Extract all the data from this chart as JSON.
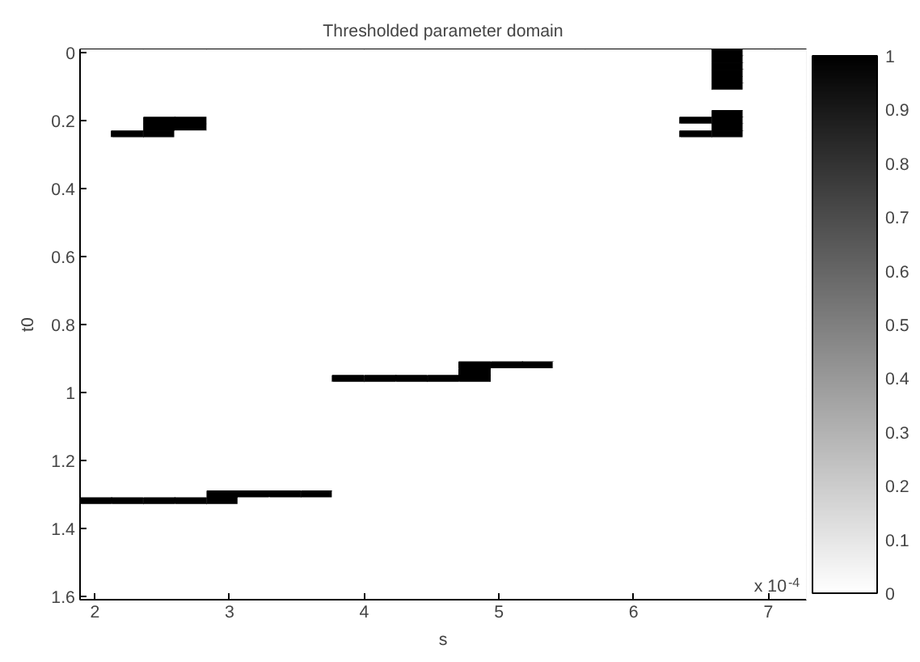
{
  "chart_data": {
    "type": "heatmap",
    "title": "Thresholded parameter domain",
    "xlabel": "s",
    "ylabel": "t0",
    "annotations": [
      "x 10$^{-4}$"
    ],
    "x": [
      2.01,
      2.24,
      2.48,
      2.71,
      2.95,
      3.18,
      3.41,
      3.65,
      3.88,
      4.12,
      4.35,
      4.59,
      4.82,
      5.06,
      5.29,
      5.52,
      5.76,
      5.99,
      6.23,
      6.46,
      6.7,
      6.93,
      7.17
    ],
    "y": [
      0,
      0.02,
      0.04,
      0.06,
      0.08,
      0.1,
      0.12,
      0.14,
      0.16,
      0.18,
      0.2,
      0.22,
      0.24,
      0.26,
      0.28,
      0.3,
      0.32,
      0.34,
      0.36,
      0.38,
      0.4,
      0.42,
      0.44,
      0.46,
      0.48,
      0.5,
      0.52,
      0.54,
      0.56,
      0.58,
      0.6,
      0.62,
      0.64,
      0.66,
      0.68,
      0.7,
      0.72,
      0.74,
      0.76,
      0.78,
      0.8,
      0.82,
      0.84,
      0.86,
      0.88,
      0.9,
      0.92,
      0.94,
      0.96,
      0.98,
      1,
      1.02,
      1.04,
      1.06,
      1.08,
      1.1,
      1.12,
      1.14,
      1.16,
      1.18,
      1.2,
      1.22,
      1.24,
      1.26,
      1.28,
      1.3,
      1.32,
      1.34,
      1.36,
      1.38,
      1.4,
      1.42,
      1.44,
      1.46,
      1.48,
      1.5,
      1.52,
      1.54,
      1.56,
      1.58,
      1.6
    ],
    "xlim": [
      1.89,
      7.28
    ],
    "ylim": [
      1.61,
      -0.01
    ],
    "xticks": [
      2,
      3,
      4,
      5,
      6,
      7
    ],
    "yticks": [
      0,
      0.2,
      0.4,
      0.6,
      0.8,
      1,
      1.2,
      1.4,
      1.6
    ],
    "clim": [
      0,
      1
    ],
    "cticks": [
      0,
      0.1,
      0.2,
      0.3,
      0.4,
      0.5,
      0.6,
      0.7,
      0.8,
      0.9,
      1
    ],
    "grid": false,
    "cells": [
      [
        0,
        0,
        0,
        0,
        0,
        0,
        0,
        0,
        0,
        0,
        0,
        0,
        0,
        0,
        0,
        0,
        0,
        0,
        0,
        0,
        1,
        0,
        0
      ],
      [
        0,
        0,
        0,
        0,
        0,
        0,
        0,
        0,
        0,
        0,
        0,
        0,
        0,
        0,
        0,
        0,
        0,
        0,
        0,
        0,
        1,
        0,
        0
      ],
      [
        0,
        0,
        0,
        0,
        0,
        0,
        0,
        0,
        0,
        0,
        0,
        0,
        0,
        0,
        0,
        0,
        0,
        0,
        0,
        0,
        1,
        0,
        0
      ],
      [
        0,
        0,
        0,
        0,
        0,
        0,
        0,
        0,
        0,
        0,
        0,
        0,
        0,
        0,
        0,
        0,
        0,
        0,
        0,
        0,
        1,
        0,
        0
      ],
      [
        0,
        0,
        0,
        0,
        0,
        0,
        0,
        0,
        0,
        0,
        0,
        0,
        0,
        0,
        0,
        0,
        0,
        0,
        0,
        0,
        1,
        0,
        0
      ],
      [
        0,
        0,
        0,
        0,
        0,
        0,
        0,
        0,
        0,
        0,
        0,
        0,
        0,
        0,
        0,
        0,
        0,
        0,
        0,
        0,
        1,
        0,
        0
      ],
      [
        0,
        0,
        0,
        0,
        0,
        0,
        0,
        0,
        0,
        0,
        0,
        0,
        0,
        0,
        0,
        0,
        0,
        0,
        0,
        0,
        0,
        0,
        0
      ],
      [
        0,
        0,
        0,
        0,
        0,
        0,
        0,
        0,
        0,
        0,
        0,
        0,
        0,
        0,
        0,
        0,
        0,
        0,
        0,
        0,
        0,
        0,
        0
      ],
      [
        0,
        0,
        0,
        0,
        0,
        0,
        0,
        0,
        0,
        0,
        0,
        0,
        0,
        0,
        0,
        0,
        0,
        0,
        0,
        0,
        0,
        0,
        0
      ],
      [
        0,
        0,
        0,
        0,
        0,
        0,
        0,
        0,
        0,
        0,
        0,
        0,
        0,
        0,
        0,
        0,
        0,
        0,
        0,
        0,
        1,
        0,
        0
      ],
      [
        0,
        0,
        1,
        1,
        0,
        0,
        0,
        0,
        0,
        0,
        0,
        0,
        0,
        0,
        0,
        0,
        0,
        0,
        0,
        1,
        1,
        0,
        0
      ],
      [
        0,
        0,
        1,
        1,
        0,
        0,
        0,
        0,
        0,
        0,
        0,
        0,
        0,
        0,
        0,
        0,
        0,
        0,
        0,
        0,
        1,
        0,
        0
      ],
      [
        0,
        1,
        1,
        0,
        0,
        0,
        0,
        0,
        0,
        0,
        0,
        0,
        0,
        0,
        0,
        0,
        0,
        0,
        0,
        1,
        1,
        0,
        0
      ],
      [
        0,
        0,
        0,
        0,
        0,
        0,
        0,
        0,
        0,
        0,
        0,
        0,
        0,
        0,
        0,
        0,
        0,
        0,
        0,
        0,
        0,
        0,
        0
      ],
      [
        0,
        0,
        0,
        0,
        0,
        0,
        0,
        0,
        0,
        0,
        0,
        0,
        0,
        0,
        0,
        0,
        0,
        0,
        0,
        0,
        0,
        0,
        0
      ],
      [
        0,
        0,
        0,
        0,
        0,
        0,
        0,
        0,
        0,
        0,
        0,
        0,
        0,
        0,
        0,
        0,
        0,
        0,
        0,
        0,
        0,
        0,
        0
      ],
      [
        0,
        0,
        0,
        0,
        0,
        0,
        0,
        0,
        0,
        0,
        0,
        0,
        0,
        0,
        0,
        0,
        0,
        0,
        0,
        0,
        0,
        0,
        0
      ],
      [
        0,
        0,
        0,
        0,
        0,
        0,
        0,
        0,
        0,
        0,
        0,
        0,
        0,
        0,
        0,
        0,
        0,
        0,
        0,
        0,
        0,
        0,
        0
      ],
      [
        0,
        0,
        0,
        0,
        0,
        0,
        0,
        0,
        0,
        0,
        0,
        0,
        0,
        0,
        0,
        0,
        0,
        0,
        0,
        0,
        0,
        0,
        0
      ],
      [
        0,
        0,
        0,
        0,
        0,
        0,
        0,
        0,
        0,
        0,
        0,
        0,
        0,
        0,
        0,
        0,
        0,
        0,
        0,
        0,
        0,
        0,
        0
      ],
      [
        0,
        0,
        0,
        0,
        0,
        0,
        0,
        0,
        0,
        0,
        0,
        0,
        0,
        0,
        0,
        0,
        0,
        0,
        0,
        0,
        0,
        0,
        0
      ],
      [
        0,
        0,
        0,
        0,
        0,
        0,
        0,
        0,
        0,
        0,
        0,
        0,
        0,
        0,
        0,
        0,
        0,
        0,
        0,
        0,
        0,
        0,
        0
      ],
      [
        0,
        0,
        0,
        0,
        0,
        0,
        0,
        0,
        0,
        0,
        0,
        0,
        0,
        0,
        0,
        0,
        0,
        0,
        0,
        0,
        0,
        0,
        0
      ],
      [
        0,
        0,
        0,
        0,
        0,
        0,
        0,
        0,
        0,
        0,
        0,
        0,
        0,
        0,
        0,
        0,
        0,
        0,
        0,
        0,
        0,
        0,
        0
      ],
      [
        0,
        0,
        0,
        0,
        0,
        0,
        0,
        0,
        0,
        0,
        0,
        0,
        0,
        0,
        0,
        0,
        0,
        0,
        0,
        0,
        0,
        0,
        0
      ],
      [
        0,
        0,
        0,
        0,
        0,
        0,
        0,
        0,
        0,
        0,
        0,
        0,
        0,
        0,
        0,
        0,
        0,
        0,
        0,
        0,
        0,
        0,
        0
      ],
      [
        0,
        0,
        0,
        0,
        0,
        0,
        0,
        0,
        0,
        0,
        0,
        0,
        0,
        0,
        0,
        0,
        0,
        0,
        0,
        0,
        0,
        0,
        0
      ],
      [
        0,
        0,
        0,
        0,
        0,
        0,
        0,
        0,
        0,
        0,
        0,
        0,
        0,
        0,
        0,
        0,
        0,
        0,
        0,
        0,
        0,
        0,
        0
      ],
      [
        0,
        0,
        0,
        0,
        0,
        0,
        0,
        0,
        0,
        0,
        0,
        0,
        0,
        0,
        0,
        0,
        0,
        0,
        0,
        0,
        0,
        0,
        0
      ],
      [
        0,
        0,
        0,
        0,
        0,
        0,
        0,
        0,
        0,
        0,
        0,
        0,
        0,
        0,
        0,
        0,
        0,
        0,
        0,
        0,
        0,
        0,
        0
      ],
      [
        0,
        0,
        0,
        0,
        0,
        0,
        0,
        0,
        0,
        0,
        0,
        0,
        0,
        0,
        0,
        0,
        0,
        0,
        0,
        0,
        0,
        0,
        0
      ],
      [
        0,
        0,
        0,
        0,
        0,
        0,
        0,
        0,
        0,
        0,
        0,
        0,
        0,
        0,
        0,
        0,
        0,
        0,
        0,
        0,
        0,
        0,
        0
      ],
      [
        0,
        0,
        0,
        0,
        0,
        0,
        0,
        0,
        0,
        0,
        0,
        0,
        0,
        0,
        0,
        0,
        0,
        0,
        0,
        0,
        0,
        0,
        0
      ],
      [
        0,
        0,
        0,
        0,
        0,
        0,
        0,
        0,
        0,
        0,
        0,
        0,
        0,
        0,
        0,
        0,
        0,
        0,
        0,
        0,
        0,
        0,
        0
      ],
      [
        0,
        0,
        0,
        0,
        0,
        0,
        0,
        0,
        0,
        0,
        0,
        0,
        0,
        0,
        0,
        0,
        0,
        0,
        0,
        0,
        0,
        0,
        0
      ],
      [
        0,
        0,
        0,
        0,
        0,
        0,
        0,
        0,
        0,
        0,
        0,
        0,
        0,
        0,
        0,
        0,
        0,
        0,
        0,
        0,
        0,
        0,
        0
      ],
      [
        0,
        0,
        0,
        0,
        0,
        0,
        0,
        0,
        0,
        0,
        0,
        0,
        0,
        0,
        0,
        0,
        0,
        0,
        0,
        0,
        0,
        0,
        0
      ],
      [
        0,
        0,
        0,
        0,
        0,
        0,
        0,
        0,
        0,
        0,
        0,
        0,
        0,
        0,
        0,
        0,
        0,
        0,
        0,
        0,
        0,
        0,
        0
      ],
      [
        0,
        0,
        0,
        0,
        0,
        0,
        0,
        0,
        0,
        0,
        0,
        0,
        0,
        0,
        0,
        0,
        0,
        0,
        0,
        0,
        0,
        0,
        0
      ],
      [
        0,
        0,
        0,
        0,
        0,
        0,
        0,
        0,
        0,
        0,
        0,
        0,
        0,
        0,
        0,
        0,
        0,
        0,
        0,
        0,
        0,
        0,
        0
      ],
      [
        0,
        0,
        0,
        0,
        0,
        0,
        0,
        0,
        0,
        0,
        0,
        0,
        0,
        0,
        0,
        0,
        0,
        0,
        0,
        0,
        0,
        0,
        0
      ],
      [
        0,
        0,
        0,
        0,
        0,
        0,
        0,
        0,
        0,
        0,
        0,
        0,
        0,
        0,
        0,
        0,
        0,
        0,
        0,
        0,
        0,
        0,
        0
      ],
      [
        0,
        0,
        0,
        0,
        0,
        0,
        0,
        0,
        0,
        0,
        0,
        0,
        0,
        0,
        0,
        0,
        0,
        0,
        0,
        0,
        0,
        0,
        0
      ],
      [
        0,
        0,
        0,
        0,
        0,
        0,
        0,
        0,
        0,
        0,
        0,
        0,
        0,
        0,
        0,
        0,
        0,
        0,
        0,
        0,
        0,
        0,
        0
      ],
      [
        0,
        0,
        0,
        0,
        0,
        0,
        0,
        0,
        0,
        0,
        0,
        0,
        0,
        0,
        0,
        0,
        0,
        0,
        0,
        0,
        0,
        0,
        0
      ],
      [
        0,
        0,
        0,
        0,
        0,
        0,
        0,
        0,
        0,
        0,
        0,
        0,
        0,
        0,
        0,
        0,
        0,
        0,
        0,
        0,
        0,
        0,
        0
      ],
      [
        0,
        0,
        0,
        0,
        0,
        0,
        0,
        0,
        0,
        0,
        0,
        0,
        1,
        1,
        1,
        0,
        0,
        0,
        0,
        0,
        0,
        0,
        0
      ],
      [
        0,
        0,
        0,
        0,
        0,
        0,
        0,
        0,
        0,
        0,
        0,
        0,
        1,
        0,
        0,
        0,
        0,
        0,
        0,
        0,
        0,
        0,
        0
      ],
      [
        0,
        0,
        0,
        0,
        0,
        0,
        0,
        0,
        1,
        1,
        1,
        1,
        1,
        0,
        0,
        0,
        0,
        0,
        0,
        0,
        0,
        0,
        0
      ],
      [
        0,
        0,
        0,
        0,
        0,
        0,
        0,
        0,
        0,
        0,
        0,
        0,
        0,
        0,
        0,
        0,
        0,
        0,
        0,
        0,
        0,
        0,
        0
      ],
      [
        0,
        0,
        0,
        0,
        0,
        0,
        0,
        0,
        0,
        0,
        0,
        0,
        0,
        0,
        0,
        0,
        0,
        0,
        0,
        0,
        0,
        0,
        0
      ],
      [
        0,
        0,
        0,
        0,
        0,
        0,
        0,
        0,
        0,
        0,
        0,
        0,
        0,
        0,
        0,
        0,
        0,
        0,
        0,
        0,
        0,
        0,
        0
      ],
      [
        0,
        0,
        0,
        0,
        0,
        0,
        0,
        0,
        0,
        0,
        0,
        0,
        0,
        0,
        0,
        0,
        0,
        0,
        0,
        0,
        0,
        0,
        0
      ],
      [
        0,
        0,
        0,
        0,
        0,
        0,
        0,
        0,
        0,
        0,
        0,
        0,
        0,
        0,
        0,
        0,
        0,
        0,
        0,
        0,
        0,
        0,
        0
      ],
      [
        0,
        0,
        0,
        0,
        0,
        0,
        0,
        0,
        0,
        0,
        0,
        0,
        0,
        0,
        0,
        0,
        0,
        0,
        0,
        0,
        0,
        0,
        0
      ],
      [
        0,
        0,
        0,
        0,
        0,
        0,
        0,
        0,
        0,
        0,
        0,
        0,
        0,
        0,
        0,
        0,
        0,
        0,
        0,
        0,
        0,
        0,
        0
      ],
      [
        0,
        0,
        0,
        0,
        0,
        0,
        0,
        0,
        0,
        0,
        0,
        0,
        0,
        0,
        0,
        0,
        0,
        0,
        0,
        0,
        0,
        0,
        0
      ],
      [
        0,
        0,
        0,
        0,
        0,
        0,
        0,
        0,
        0,
        0,
        0,
        0,
        0,
        0,
        0,
        0,
        0,
        0,
        0,
        0,
        0,
        0,
        0
      ],
      [
        0,
        0,
        0,
        0,
        0,
        0,
        0,
        0,
        0,
        0,
        0,
        0,
        0,
        0,
        0,
        0,
        0,
        0,
        0,
        0,
        0,
        0,
        0
      ],
      [
        0,
        0,
        0,
        0,
        0,
        0,
        0,
        0,
        0,
        0,
        0,
        0,
        0,
        0,
        0,
        0,
        0,
        0,
        0,
        0,
        0,
        0,
        0
      ],
      [
        0,
        0,
        0,
        0,
        0,
        0,
        0,
        0,
        0,
        0,
        0,
        0,
        0,
        0,
        0,
        0,
        0,
        0,
        0,
        0,
        0,
        0,
        0
      ],
      [
        0,
        0,
        0,
        0,
        0,
        0,
        0,
        0,
        0,
        0,
        0,
        0,
        0,
        0,
        0,
        0,
        0,
        0,
        0,
        0,
        0,
        0,
        0
      ],
      [
        0,
        0,
        0,
        0,
        0,
        0,
        0,
        0,
        0,
        0,
        0,
        0,
        0,
        0,
        0,
        0,
        0,
        0,
        0,
        0,
        0,
        0,
        0
      ],
      [
        0,
        0,
        0,
        0,
        0,
        0,
        0,
        0,
        0,
        0,
        0,
        0,
        0,
        0,
        0,
        0,
        0,
        0,
        0,
        0,
        0,
        0,
        0
      ],
      [
        0,
        0,
        0,
        0,
        0,
        0,
        0,
        0,
        0,
        0,
        0,
        0,
        0,
        0,
        0,
        0,
        0,
        0,
        0,
        0,
        0,
        0,
        0
      ],
      [
        0,
        0,
        0,
        0,
        1,
        1,
        1,
        1,
        0,
        0,
        0,
        0,
        0,
        0,
        0,
        0,
        0,
        0,
        0,
        0,
        0,
        0,
        0
      ],
      [
        1,
        1,
        1,
        1,
        1,
        0,
        0,
        0,
        0,
        0,
        0,
        0,
        0,
        0,
        0,
        0,
        0,
        0,
        0,
        0,
        0,
        0,
        0
      ],
      [
        0,
        0,
        0,
        0,
        0,
        0,
        0,
        0,
        0,
        0,
        0,
        0,
        0,
        0,
        0,
        0,
        0,
        0,
        0,
        0,
        0,
        0,
        0
      ],
      [
        0,
        0,
        0,
        0,
        0,
        0,
        0,
        0,
        0,
        0,
        0,
        0,
        0,
        0,
        0,
        0,
        0,
        0,
        0,
        0,
        0,
        0,
        0
      ],
      [
        0,
        0,
        0,
        0,
        0,
        0,
        0,
        0,
        0,
        0,
        0,
        0,
        0,
        0,
        0,
        0,
        0,
        0,
        0,
        0,
        0,
        0,
        0
      ],
      [
        0,
        0,
        0,
        0,
        0,
        0,
        0,
        0,
        0,
        0,
        0,
        0,
        0,
        0,
        0,
        0,
        0,
        0,
        0,
        0,
        0,
        0,
        0
      ],
      [
        0,
        0,
        0,
        0,
        0,
        0,
        0,
        0,
        0,
        0,
        0,
        0,
        0,
        0,
        0,
        0,
        0,
        0,
        0,
        0,
        0,
        0,
        0
      ],
      [
        0,
        0,
        0,
        0,
        0,
        0,
        0,
        0,
        0,
        0,
        0,
        0,
        0,
        0,
        0,
        0,
        0,
        0,
        0,
        0,
        0,
        0,
        0
      ],
      [
        0,
        0,
        0,
        0,
        0,
        0,
        0,
        0,
        0,
        0,
        0,
        0,
        0,
        0,
        0,
        0,
        0,
        0,
        0,
        0,
        0,
        0,
        0
      ],
      [
        0,
        0,
        0,
        0,
        0,
        0,
        0,
        0,
        0,
        0,
        0,
        0,
        0,
        0,
        0,
        0,
        0,
        0,
        0,
        0,
        0,
        0,
        0
      ],
      [
        0,
        0,
        0,
        0,
        0,
        0,
        0,
        0,
        0,
        0,
        0,
        0,
        0,
        0,
        0,
        0,
        0,
        0,
        0,
        0,
        0,
        0,
        0
      ],
      [
        0,
        0,
        0,
        0,
        0,
        0,
        0,
        0,
        0,
        0,
        0,
        0,
        0,
        0,
        0,
        0,
        0,
        0,
        0,
        0,
        0,
        0,
        0
      ],
      [
        0,
        0,
        0,
        0,
        0,
        0,
        0,
        0,
        0,
        0,
        0,
        0,
        0,
        0,
        0,
        0,
        0,
        0,
        0,
        0,
        0,
        0,
        0
      ],
      [
        0,
        0,
        0,
        0,
        0,
        0,
        0,
        0,
        0,
        0,
        0,
        0,
        0,
        0,
        0,
        0,
        0,
        0,
        0,
        0,
        0,
        0,
        0
      ],
      [
        0,
        0,
        0,
        0,
        0,
        0,
        0,
        0,
        0,
        0,
        0,
        0,
        0,
        0,
        0,
        0,
        0,
        0,
        0,
        0,
        0,
        0,
        0
      ],
      [
        0,
        0,
        0,
        0,
        0,
        0,
        0,
        0,
        0,
        0,
        0,
        0,
        0,
        0,
        0,
        0,
        0,
        0,
        0,
        0,
        0,
        0,
        0
      ]
    ]
  }
}
